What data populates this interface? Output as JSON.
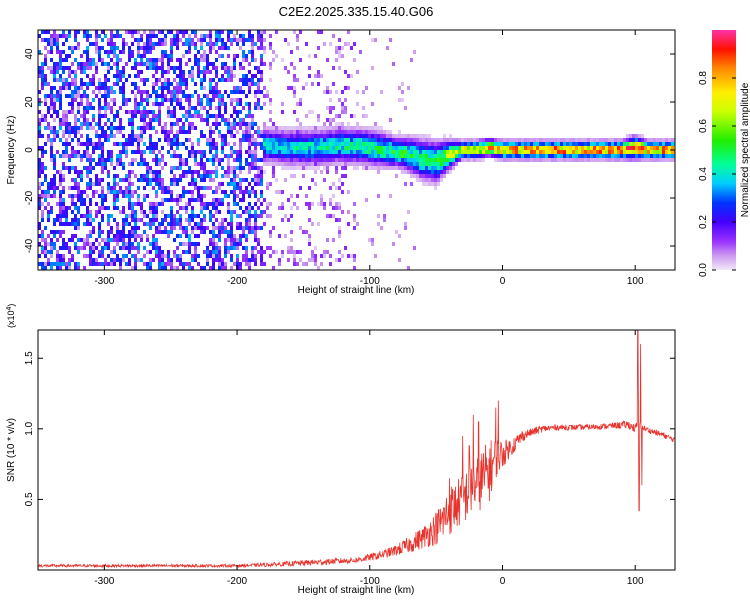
{
  "title": "C2E2.2025.335.15.40.G06",
  "chart_data": [
    {
      "type": "heatmap",
      "xlabel": "Height of straight line (km)",
      "ylabel": "Frequency (Hz)",
      "xlim": [
        -350,
        130
      ],
      "ylim": [
        -50,
        50
      ],
      "xticks": [
        -300,
        -200,
        -100,
        0,
        100
      ],
      "yticks": [
        -40,
        -20,
        0,
        20,
        40
      ],
      "colorbar": {
        "label": "Normalized spectral amplitude",
        "range": [
          0,
          1
        ],
        "ticks": [
          "0.0",
          "0.2",
          "0.4",
          "0.6",
          "0.8"
        ],
        "tick_values": [
          0,
          0.2,
          0.4,
          0.6,
          0.8
        ],
        "colormap": "rainbow (magenta-blue-cyan-green-yellow-red)"
      },
      "regions": [
        {
          "x_range": [
            -350,
            -180
          ],
          "description": "broadband noise",
          "amplitude": [
            0.05,
            0.35
          ]
        },
        {
          "x_range": [
            -180,
            -110
          ],
          "description": "sparse noise",
          "amplitude": [
            0.0,
            0.15
          ]
        },
        {
          "x_range": [
            -110,
            -65
          ],
          "description": "very sparse noise",
          "amplitude": [
            0.0,
            0.1
          ]
        }
      ],
      "signal_track": {
        "description": "signal near 0 Hz",
        "x": [
          -180,
          -160,
          -140,
          -120,
          -100,
          -90,
          -80,
          -70,
          -60,
          -50,
          -40,
          -30,
          -20,
          -10,
          0,
          20,
          50,
          90,
          100,
          110,
          130
        ],
        "freq": [
          2,
          1,
          1,
          2,
          1,
          0,
          -1,
          -2,
          -4,
          -5,
          -2,
          0,
          0,
          1,
          0,
          0,
          0,
          0,
          1,
          0,
          0
        ],
        "width": [
          6,
          6,
          6,
          6,
          6,
          6,
          5,
          6,
          7,
          7,
          5,
          3,
          3,
          3,
          3,
          3,
          3,
          3,
          4,
          3,
          3
        ],
        "peak": [
          0.4,
          0.4,
          0.45,
          0.45,
          0.5,
          0.5,
          0.55,
          0.5,
          0.5,
          0.55,
          0.65,
          0.75,
          0.8,
          0.85,
          0.9,
          0.9,
          0.9,
          0.9,
          0.9,
          0.9,
          0.9
        ]
      }
    },
    {
      "type": "line",
      "xlabel": "Height of straight line (km)",
      "ylabel": "SNR (10 * v/v)",
      "y_multiplier": "(x10^4)",
      "xlim": [
        -350,
        130
      ],
      "ylim": [
        0,
        1.7
      ],
      "xticks": [
        -300,
        -200,
        -100,
        0,
        100
      ],
      "yticks": [
        "0.5",
        "1.0",
        "1.5"
      ],
      "ytick_values": [
        0.5,
        1.0,
        1.5
      ],
      "series": [
        {
          "color": "#e8322c",
          "x": [
            -350,
            -300,
            -250,
            -200,
            -170,
            -150,
            -130,
            -110,
            -100,
            -90,
            -80,
            -70,
            -60,
            -50,
            -45,
            -40,
            -35,
            -30,
            -25,
            -20,
            -15,
            -10,
            -5,
            0,
            5,
            10,
            15,
            20,
            30,
            40,
            60,
            80,
            95,
            100,
            103,
            105,
            110,
            120,
            130
          ],
          "y": [
            0.03,
            0.03,
            0.03,
            0.03,
            0.04,
            0.05,
            0.06,
            0.07,
            0.09,
            0.11,
            0.14,
            0.18,
            0.23,
            0.3,
            0.35,
            0.42,
            0.46,
            0.5,
            0.55,
            0.6,
            0.65,
            0.7,
            0.8,
            0.82,
            0.86,
            0.9,
            0.95,
            0.97,
            1.0,
            1.01,
            1.01,
            1.02,
            1.03,
            1.0,
            1.05,
            1.01,
            0.99,
            0.96,
            0.92
          ],
          "noise": [
            0.01,
            0.01,
            0.01,
            0.01,
            0.015,
            0.02,
            0.02,
            0.02,
            0.025,
            0.03,
            0.04,
            0.06,
            0.08,
            0.12,
            0.15,
            0.18,
            0.18,
            0.18,
            0.2,
            0.2,
            0.22,
            0.22,
            0.15,
            0.1,
            0.07,
            0.06,
            0.04,
            0.03,
            0.025,
            0.02,
            0.02,
            0.02,
            0.03,
            0.03,
            0.03,
            0.02,
            0.02,
            0.02,
            0.02
          ],
          "spikes": [
            {
              "x": -40,
              "y": 0.65
            },
            {
              "x": -30,
              "y": 0.95
            },
            {
              "x": -25,
              "y": 0.88
            },
            {
              "x": -22,
              "y": 1.1
            },
            {
              "x": -18,
              "y": 1.05
            },
            {
              "x": -5,
              "y": 1.15
            },
            {
              "x": -3,
              "y": 1.2
            },
            {
              "x": 102,
              "y": 1.72
            },
            {
              "x": 103,
              "y": 0.42
            },
            {
              "x": 104,
              "y": 1.6
            },
            {
              "x": 105,
              "y": 0.6
            }
          ]
        }
      ]
    }
  ]
}
